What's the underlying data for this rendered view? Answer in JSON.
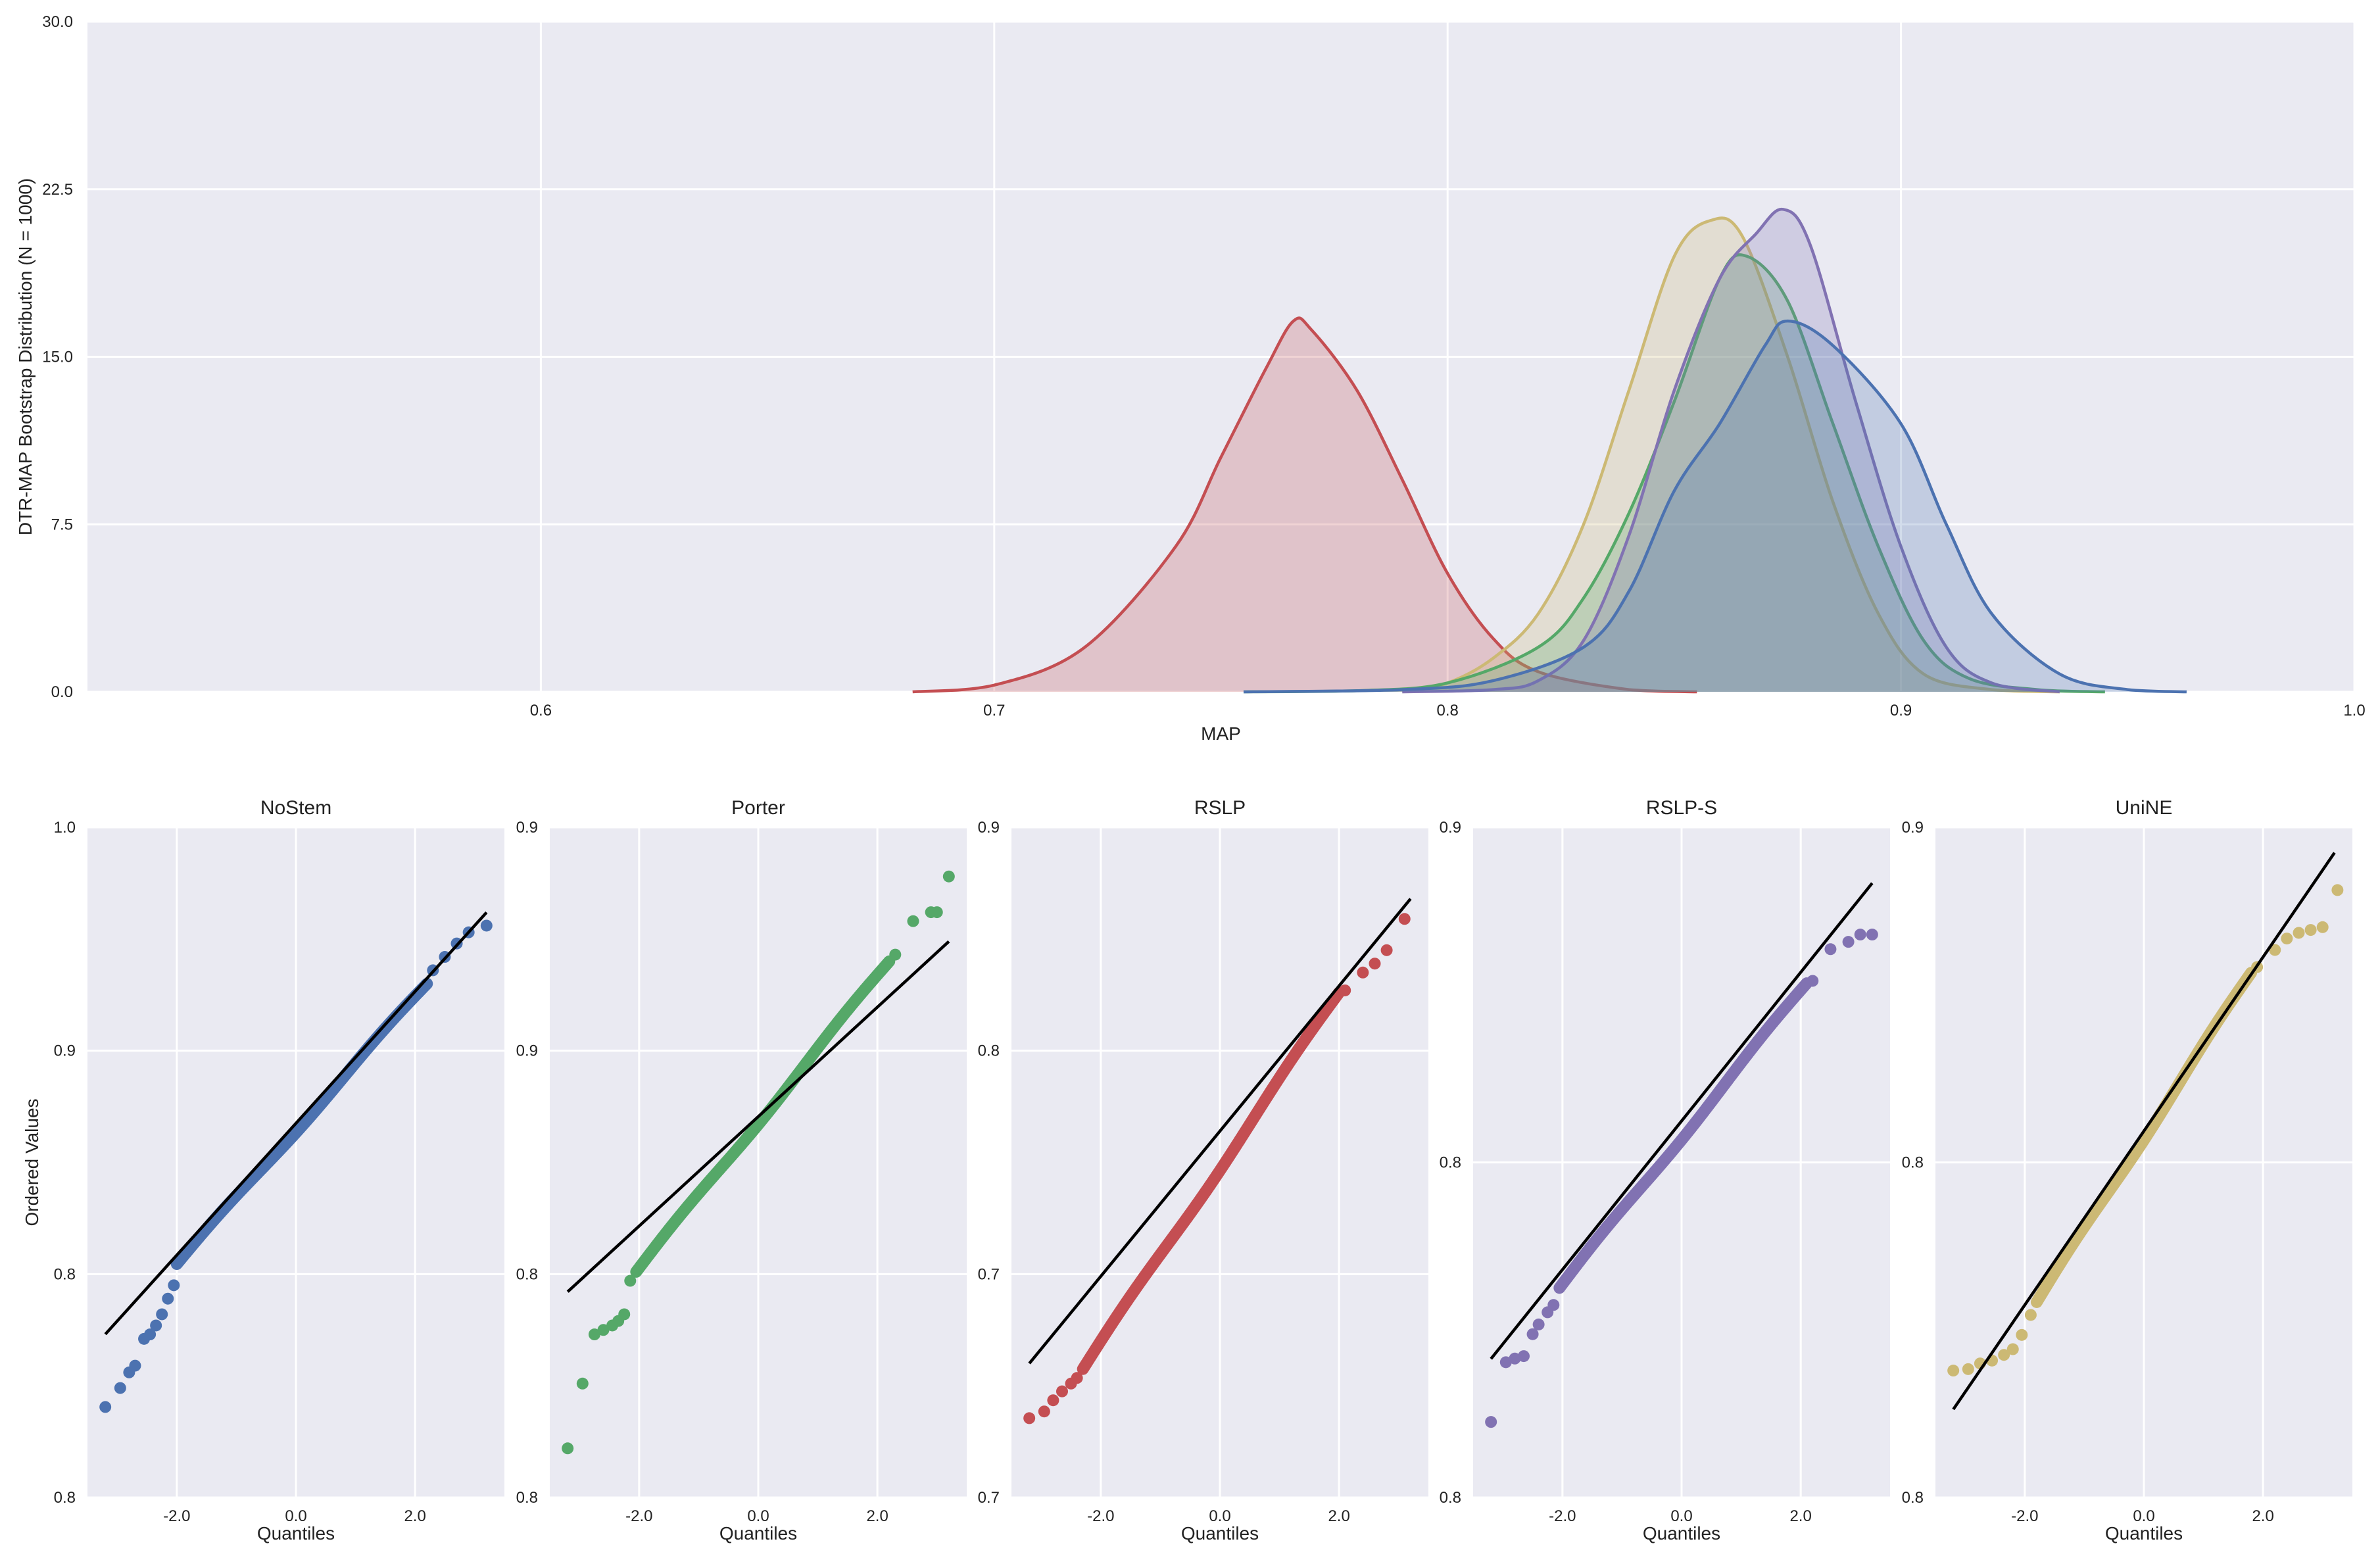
{
  "chart_data": [
    {
      "type": "area",
      "subtype": "kde",
      "xlabel": "MAP",
      "ylabel": "DTR-MAP Bootstrap Distribution (N = 1000)",
      "xlim": [
        0.5,
        1.0
      ],
      "ylim": [
        0.0,
        30.0
      ],
      "xticks": [
        "0.6",
        "0.7",
        "0.8",
        "0.9",
        "1.0"
      ],
      "yticks": [
        "0.0",
        "7.5",
        "15.0",
        "22.5",
        "30.0"
      ],
      "grid": true,
      "series": [
        {
          "color": "#C44E52",
          "x": [
            0.682,
            0.7,
            0.72,
            0.74,
            0.75,
            0.76,
            0.766,
            0.77,
            0.78,
            0.79,
            0.8,
            0.81,
            0.82,
            0.84,
            0.855
          ],
          "y": [
            0.0,
            0.3,
            2.0,
            6.5,
            10.5,
            14.5,
            16.6,
            16.2,
            13.5,
            9.5,
            5.3,
            2.4,
            0.9,
            0.1,
            0.0
          ]
        },
        {
          "color": "#CCB974",
          "x": [
            0.79,
            0.8,
            0.81,
            0.82,
            0.83,
            0.84,
            0.85,
            0.858,
            0.865,
            0.875,
            0.885,
            0.895,
            0.905,
            0.92,
            0.935
          ],
          "y": [
            0.0,
            0.4,
            1.5,
            3.5,
            7.5,
            13.5,
            19.5,
            21.1,
            20.4,
            15.0,
            8.5,
            3.5,
            0.8,
            0.1,
            0.0
          ]
        },
        {
          "color": "#55A868",
          "x": [
            0.755,
            0.78,
            0.8,
            0.82,
            0.83,
            0.84,
            0.85,
            0.86,
            0.866,
            0.875,
            0.885,
            0.895,
            0.905,
            0.915,
            0.93,
            0.945
          ],
          "y": [
            0.0,
            0.05,
            0.4,
            2.0,
            4.2,
            8.0,
            13.0,
            18.5,
            19.5,
            17.5,
            12.0,
            6.5,
            2.3,
            0.6,
            0.1,
            0.0
          ]
        },
        {
          "color": "#8172B2",
          "x": [
            0.79,
            0.81,
            0.82,
            0.83,
            0.84,
            0.85,
            0.86,
            0.868,
            0.874,
            0.88,
            0.89,
            0.9,
            0.91,
            0.92,
            0.935
          ],
          "y": [
            0.0,
            0.1,
            0.5,
            2.3,
            7.0,
            13.5,
            18.5,
            20.5,
            21.6,
            20.0,
            13.0,
            6.5,
            2.0,
            0.4,
            0.0
          ]
        },
        {
          "color": "#4C72B0",
          "x": [
            0.755,
            0.79,
            0.81,
            0.83,
            0.84,
            0.85,
            0.86,
            0.87,
            0.875,
            0.885,
            0.9,
            0.91,
            0.92,
            0.935,
            0.95,
            0.963
          ],
          "y": [
            0.0,
            0.1,
            0.5,
            2.0,
            4.5,
            9.0,
            12.0,
            15.5,
            16.6,
            15.5,
            12.0,
            7.5,
            3.5,
            0.8,
            0.1,
            0.0
          ]
        }
      ]
    },
    {
      "type": "scatter",
      "subtype": "qq-plot",
      "title": "NoStem",
      "xlabel": "Quantiles",
      "ylabel": "Ordered Values",
      "xlim": [
        -3.5,
        3.5
      ],
      "ylim": [
        0.7,
        1.0
      ],
      "xticks": [
        "-2.0",
        "0.0",
        "2.0"
      ],
      "yticks": [
        "0.8",
        "0.8",
        "0.9",
        "1.0"
      ],
      "color": "#4C72B0",
      "line": {
        "slope": 0.0295,
        "intercept": 0.8675,
        "x": [
          -3.2,
          3.2
        ]
      },
      "points": {
        "q": [
          -3.2,
          -2.95,
          -2.8,
          -2.7,
          -2.55,
          -2.45,
          -2.35,
          -2.25,
          -2.15,
          -2.05
        ],
        "v": [
          0.7405,
          0.749,
          0.756,
          0.759,
          0.771,
          0.773,
          0.777,
          0.782,
          0.789,
          0.795
        ]
      },
      "upper_points": {
        "q": [
          2.3,
          2.5,
          2.7,
          2.9,
          3.2
        ],
        "v": [
          0.936,
          0.942,
          0.948,
          0.953,
          0.956
        ]
      },
      "body_range": {
        "q": [
          -2.0,
          2.2
        ],
        "v": [
          0.8045,
          0.93
        ]
      }
    },
    {
      "type": "scatter",
      "subtype": "qq-plot",
      "title": "Porter",
      "xlabel": "Quantiles",
      "xlim": [
        -3.5,
        3.5
      ],
      "ylim": [
        0.7,
        1.0
      ],
      "xticks": [
        "-2.0",
        "0.0",
        "2.0"
      ],
      "yticks": [
        "0.8",
        "0.8",
        "0.9",
        "0.9"
      ],
      "color": "#55A868",
      "line": {
        "slope": 0.0245,
        "intercept": 0.8705,
        "x": [
          -3.2,
          3.2
        ]
      },
      "points": {
        "q": [
          -3.2,
          -2.95,
          -2.75,
          -2.6,
          -2.45,
          -2.35,
          -2.25,
          -2.15
        ],
        "v": [
          0.722,
          0.751,
          0.773,
          0.775,
          0.777,
          0.779,
          0.782,
          0.797
        ]
      },
      "upper_points": {
        "q": [
          2.3,
          2.6,
          2.9,
          3.0,
          3.2
        ],
        "v": [
          0.943,
          0.958,
          0.962,
          0.962,
          0.978
        ]
      },
      "body_range": {
        "q": [
          -2.05,
          2.2
        ],
        "v": [
          0.801,
          0.94
        ]
      }
    },
    {
      "type": "scatter",
      "subtype": "qq-plot",
      "title": "RSLP",
      "xlabel": "Quantiles",
      "xlim": [
        -3.5,
        3.5
      ],
      "ylim": [
        0.6,
        0.9
      ],
      "xticks": [
        "-2.0",
        "0.0",
        "2.0"
      ],
      "yticks": [
        "0.7",
        "0.7",
        "0.8",
        "0.9"
      ],
      "color": "#C44E52",
      "line": {
        "slope": 0.0325,
        "intercept": 0.764,
        "x": [
          -3.2,
          3.2
        ]
      },
      "points": {
        "q": [
          -3.2,
          -2.95,
          -2.8,
          -2.65,
          -2.5,
          -2.4
        ],
        "v": [
          0.6355,
          0.6385,
          0.6435,
          0.6475,
          0.651,
          0.6535
        ]
      },
      "upper_points": {
        "q": [
          2.1,
          2.4,
          2.6,
          2.8,
          3.1
        ],
        "v": [
          0.827,
          0.835,
          0.839,
          0.845,
          0.859
        ]
      },
      "body_range": {
        "q": [
          -2.3,
          2.0
        ],
        "v": [
          0.6575,
          0.826
        ]
      }
    },
    {
      "type": "scatter",
      "subtype": "qq-plot",
      "title": "RSLP-S",
      "xlabel": "Quantiles",
      "xlim": [
        -3.5,
        3.5
      ],
      "ylim": [
        0.7,
        0.975
      ],
      "xticks": [
        "-2.0",
        "0.0",
        "2.0"
      ],
      "yticks": [
        "0.8",
        "0.8",
        "0.9"
      ],
      "color": "#8172B2",
      "line": {
        "slope": 0.0305,
        "intercept": 0.8545,
        "x": [
          -3.2,
          3.2
        ]
      },
      "points": {
        "q": [
          -3.2,
          -2.95,
          -2.8,
          -2.65,
          -2.5,
          -2.4,
          -2.25,
          -2.15
        ],
        "v": [
          0.731,
          0.7555,
          0.757,
          0.758,
          0.767,
          0.771,
          0.776,
          0.779
        ]
      },
      "upper_points": {
        "q": [
          2.2,
          2.5,
          2.8,
          3.0,
          3.2
        ],
        "v": [
          0.912,
          0.925,
          0.928,
          0.931,
          0.931
        ]
      },
      "body_range": {
        "q": [
          -2.05,
          2.1
        ],
        "v": [
          0.786,
          0.911
        ]
      }
    },
    {
      "type": "scatter",
      "subtype": "qq-plot",
      "title": "UniNE",
      "xlabel": "Quantiles",
      "xlim": [
        -3.5,
        3.5
      ],
      "ylim": [
        0.7,
        0.935
      ],
      "xticks": [
        "-2.0",
        "0.0",
        "2.0"
      ],
      "yticks": [
        "0.8",
        "0.8",
        "0.9"
      ],
      "color": "#CCB974",
      "line": {
        "slope": 0.0305,
        "intercept": 0.8285,
        "x": [
          -3.2,
          3.2
        ]
      },
      "points": {
        "q": [
          -3.2,
          -2.95,
          -2.75,
          -2.55,
          -2.35,
          -2.2,
          -2.05,
          -1.9
        ],
        "v": [
          0.7445,
          0.745,
          0.747,
          0.748,
          0.75,
          0.752,
          0.757,
          0.764
        ]
      },
      "upper_points": {
        "q": [
          1.9,
          2.2,
          2.4,
          2.6,
          2.8,
          3.0,
          3.25
        ],
        "v": [
          0.886,
          0.892,
          0.896,
          0.898,
          0.899,
          0.9,
          0.913
        ]
      },
      "body_range": {
        "q": [
          -1.8,
          1.8
        ],
        "v": [
          0.7685,
          0.884
        ]
      }
    }
  ]
}
